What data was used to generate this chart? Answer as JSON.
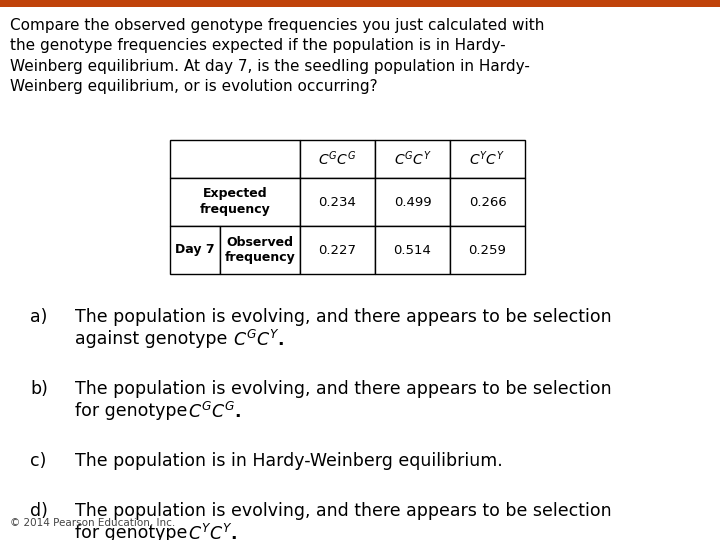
{
  "title_text": "Compare the observed genotype frequencies you just calculated with\nthe genotype frequencies expected if the population is in Hardy-\nWeinberg equilibrium. At day 7, is the seedling population in Hardy-\nWeinberg equilibrium, or is evolution occurring?",
  "row1_label": "Expected\nfrequency",
  "row1_values": [
    "0.234",
    "0.499",
    "0.266"
  ],
  "row2_col_label": "Day 7",
  "row2_label": "Observed\nfrequency",
  "row2_values": [
    "0.227",
    "0.514",
    "0.259"
  ],
  "option_c": "The population is in Hardy-Weinberg equilibrium.",
  "footer": "© 2014 Pearson Education, Inc.",
  "bg_color": "#ffffff",
  "header_bar_color": "#c0430a",
  "text_color": "#000000",
  "font_size_title": 11.0,
  "font_size_body": 12.5,
  "font_size_table": 9.5,
  "font_size_footer": 7.5
}
